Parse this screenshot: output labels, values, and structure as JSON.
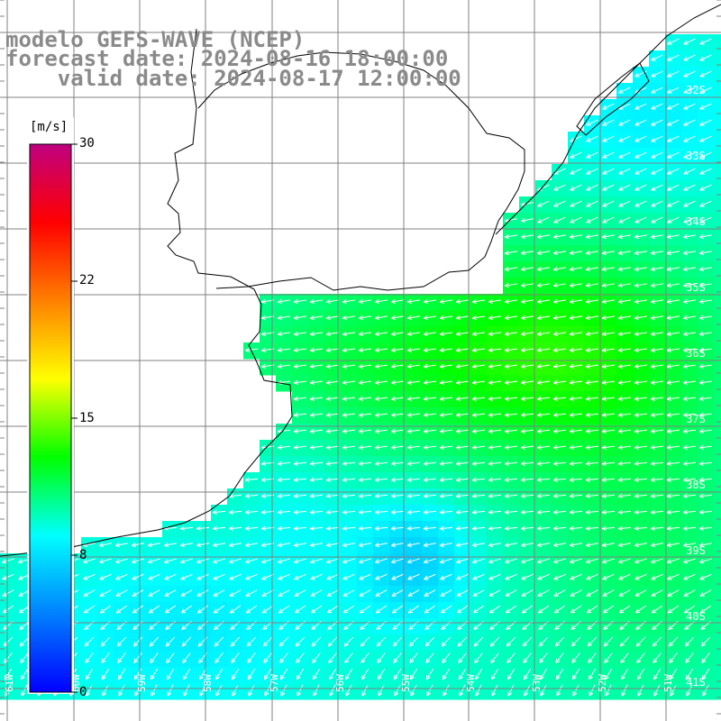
{
  "header": {
    "line1": "modelo GEFS-WAVE (NCEP)",
    "line2": "forecast date: 2024-08-16 18:00:00",
    "line3": "    valid date: 2024-08-17 12:00:00"
  },
  "colorbar": {
    "unit": "[m/s]",
    "min": 0,
    "max": 30,
    "ticks": [
      "30",
      "22",
      "15",
      "8",
      "0"
    ],
    "colors": [
      "#0000ff",
      "#0080ff",
      "#00ffff",
      "#00ff00",
      "#ffff00",
      "#ff8000",
      "#ff0000",
      "#c00080"
    ]
  },
  "map": {
    "field": "wind speed and direction",
    "lat_labels": [
      "32S",
      "33S",
      "34S",
      "35S",
      "36S",
      "37S",
      "38S",
      "39S",
      "40S",
      "41S"
    ],
    "lon_labels": [
      "61W",
      "60W",
      "59W",
      "58W",
      "57W",
      "56W",
      "55W",
      "54W",
      "53W",
      "52W",
      "51W"
    ],
    "arrow_color": "#ffffff",
    "coast_color": "#000000",
    "land_color": "#ffffff",
    "grid_color": "#808080"
  }
}
